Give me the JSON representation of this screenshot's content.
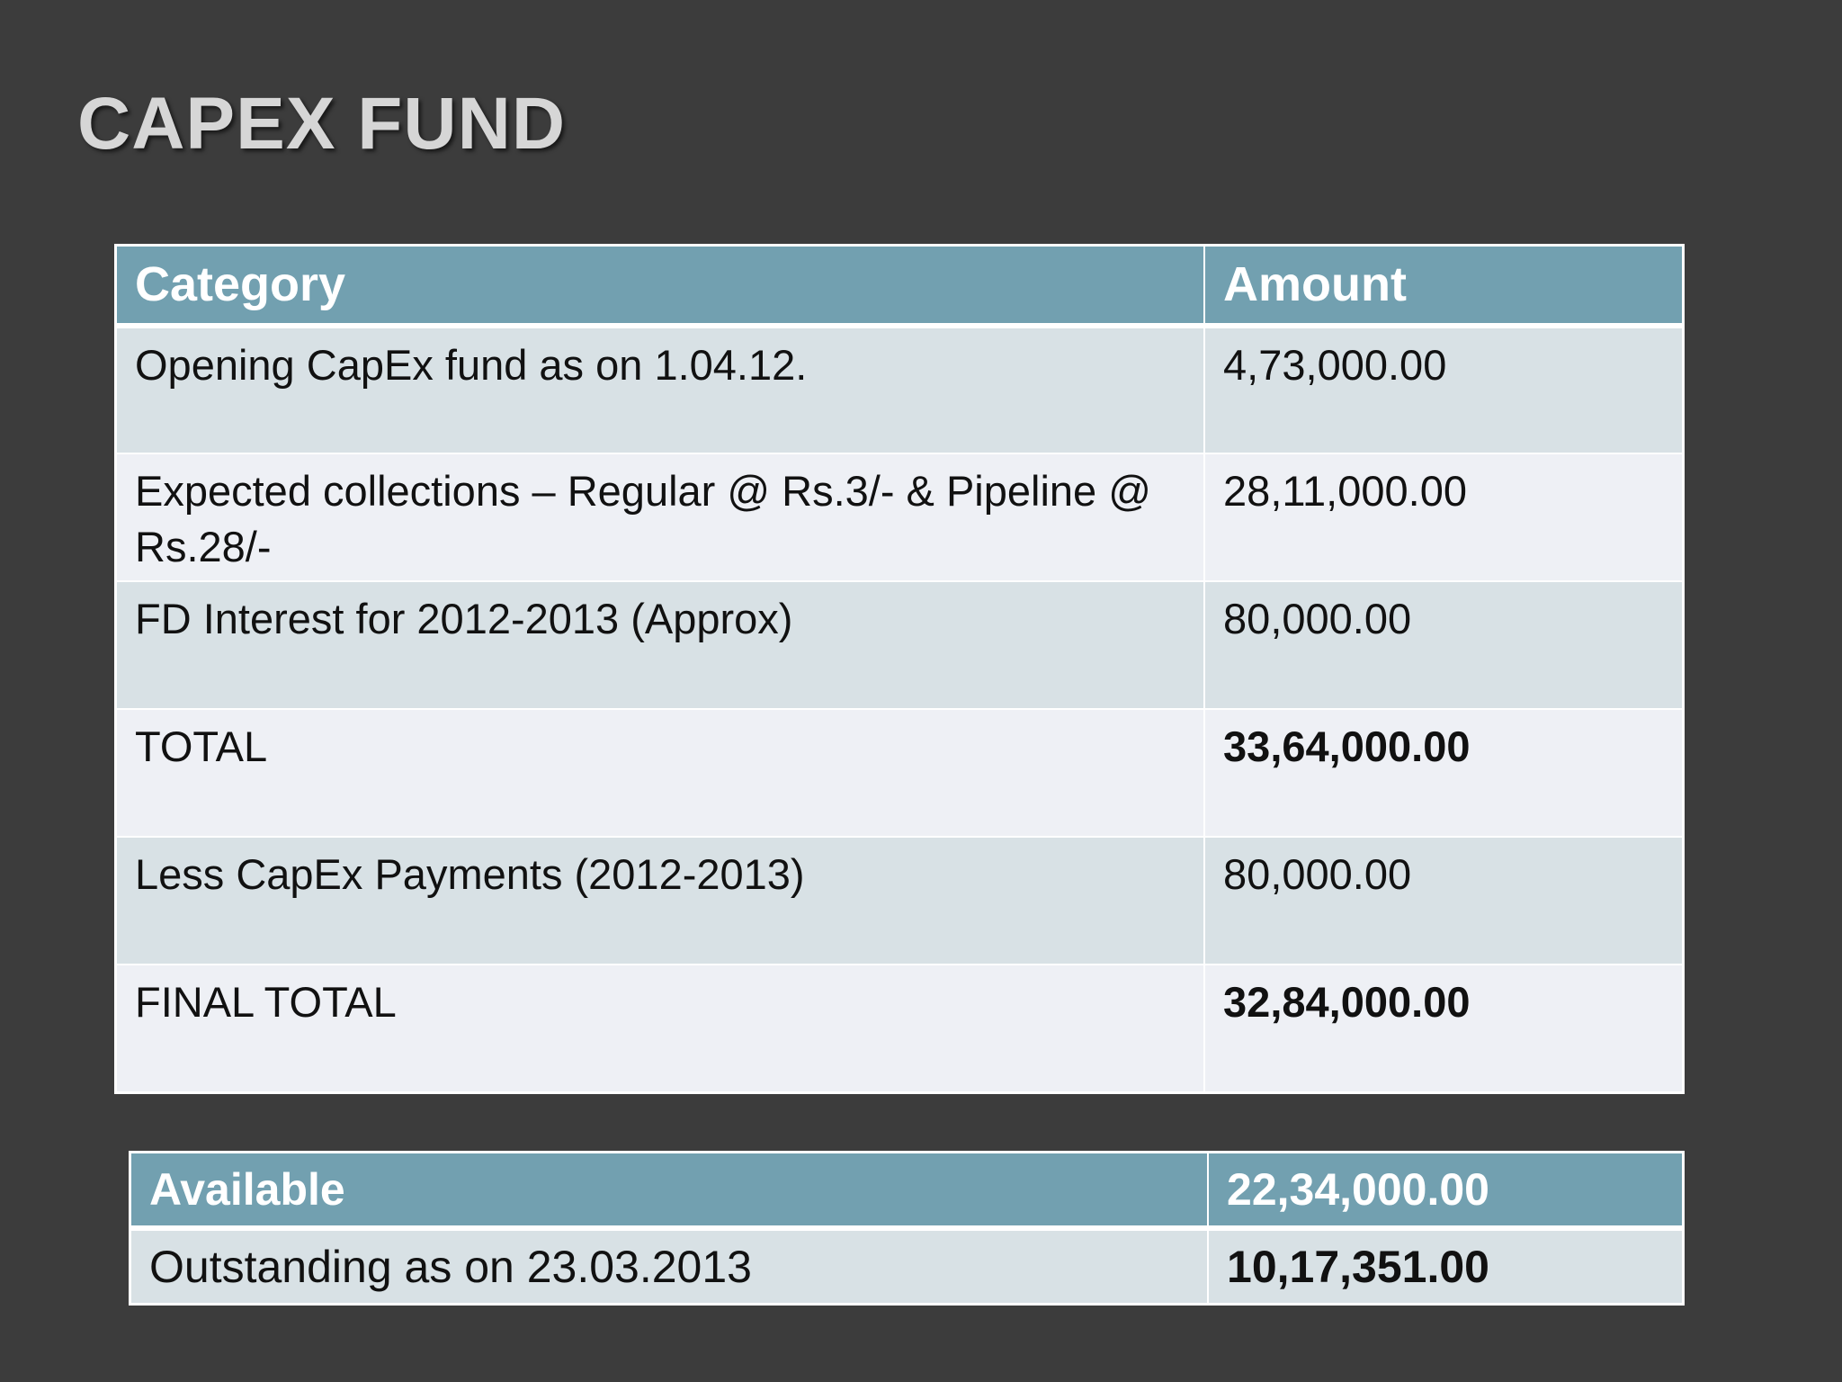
{
  "title": "CAPEX FUND",
  "main_table": {
    "headers": [
      "Category",
      "Amount"
    ],
    "rows": [
      {
        "category": "Opening CapEx fund as on 1.04.12.",
        "amount": "4,73,000.00"
      },
      {
        "category": "Expected collections – Regular @ Rs.3/- & Pipeline @ Rs.28/-",
        "amount": "28,11,000.00"
      },
      {
        "category": "FD Interest for 2012-2013 (Approx)",
        "amount": "80,000.00"
      },
      {
        "category": "TOTAL",
        "amount": "33,64,000.00"
      },
      {
        "category": "Less CapEx Payments (2012-2013)",
        "amount": "80,000.00"
      },
      {
        "category": "FINAL TOTAL",
        "amount": "32,84,000.00"
      }
    ]
  },
  "summary_table": {
    "header": {
      "label": "Available",
      "amount": "22,34,000.00"
    },
    "row": {
      "label": "Outstanding as on 23.03.2013",
      "amount": "10,17,351.00"
    }
  },
  "colors": {
    "background": "#3c3c3c",
    "header_fill": "#72a0b0",
    "row_band_1": "#d8e1e5",
    "row_band_2": "#eef0f5",
    "title_text": "#d6d6d6"
  }
}
